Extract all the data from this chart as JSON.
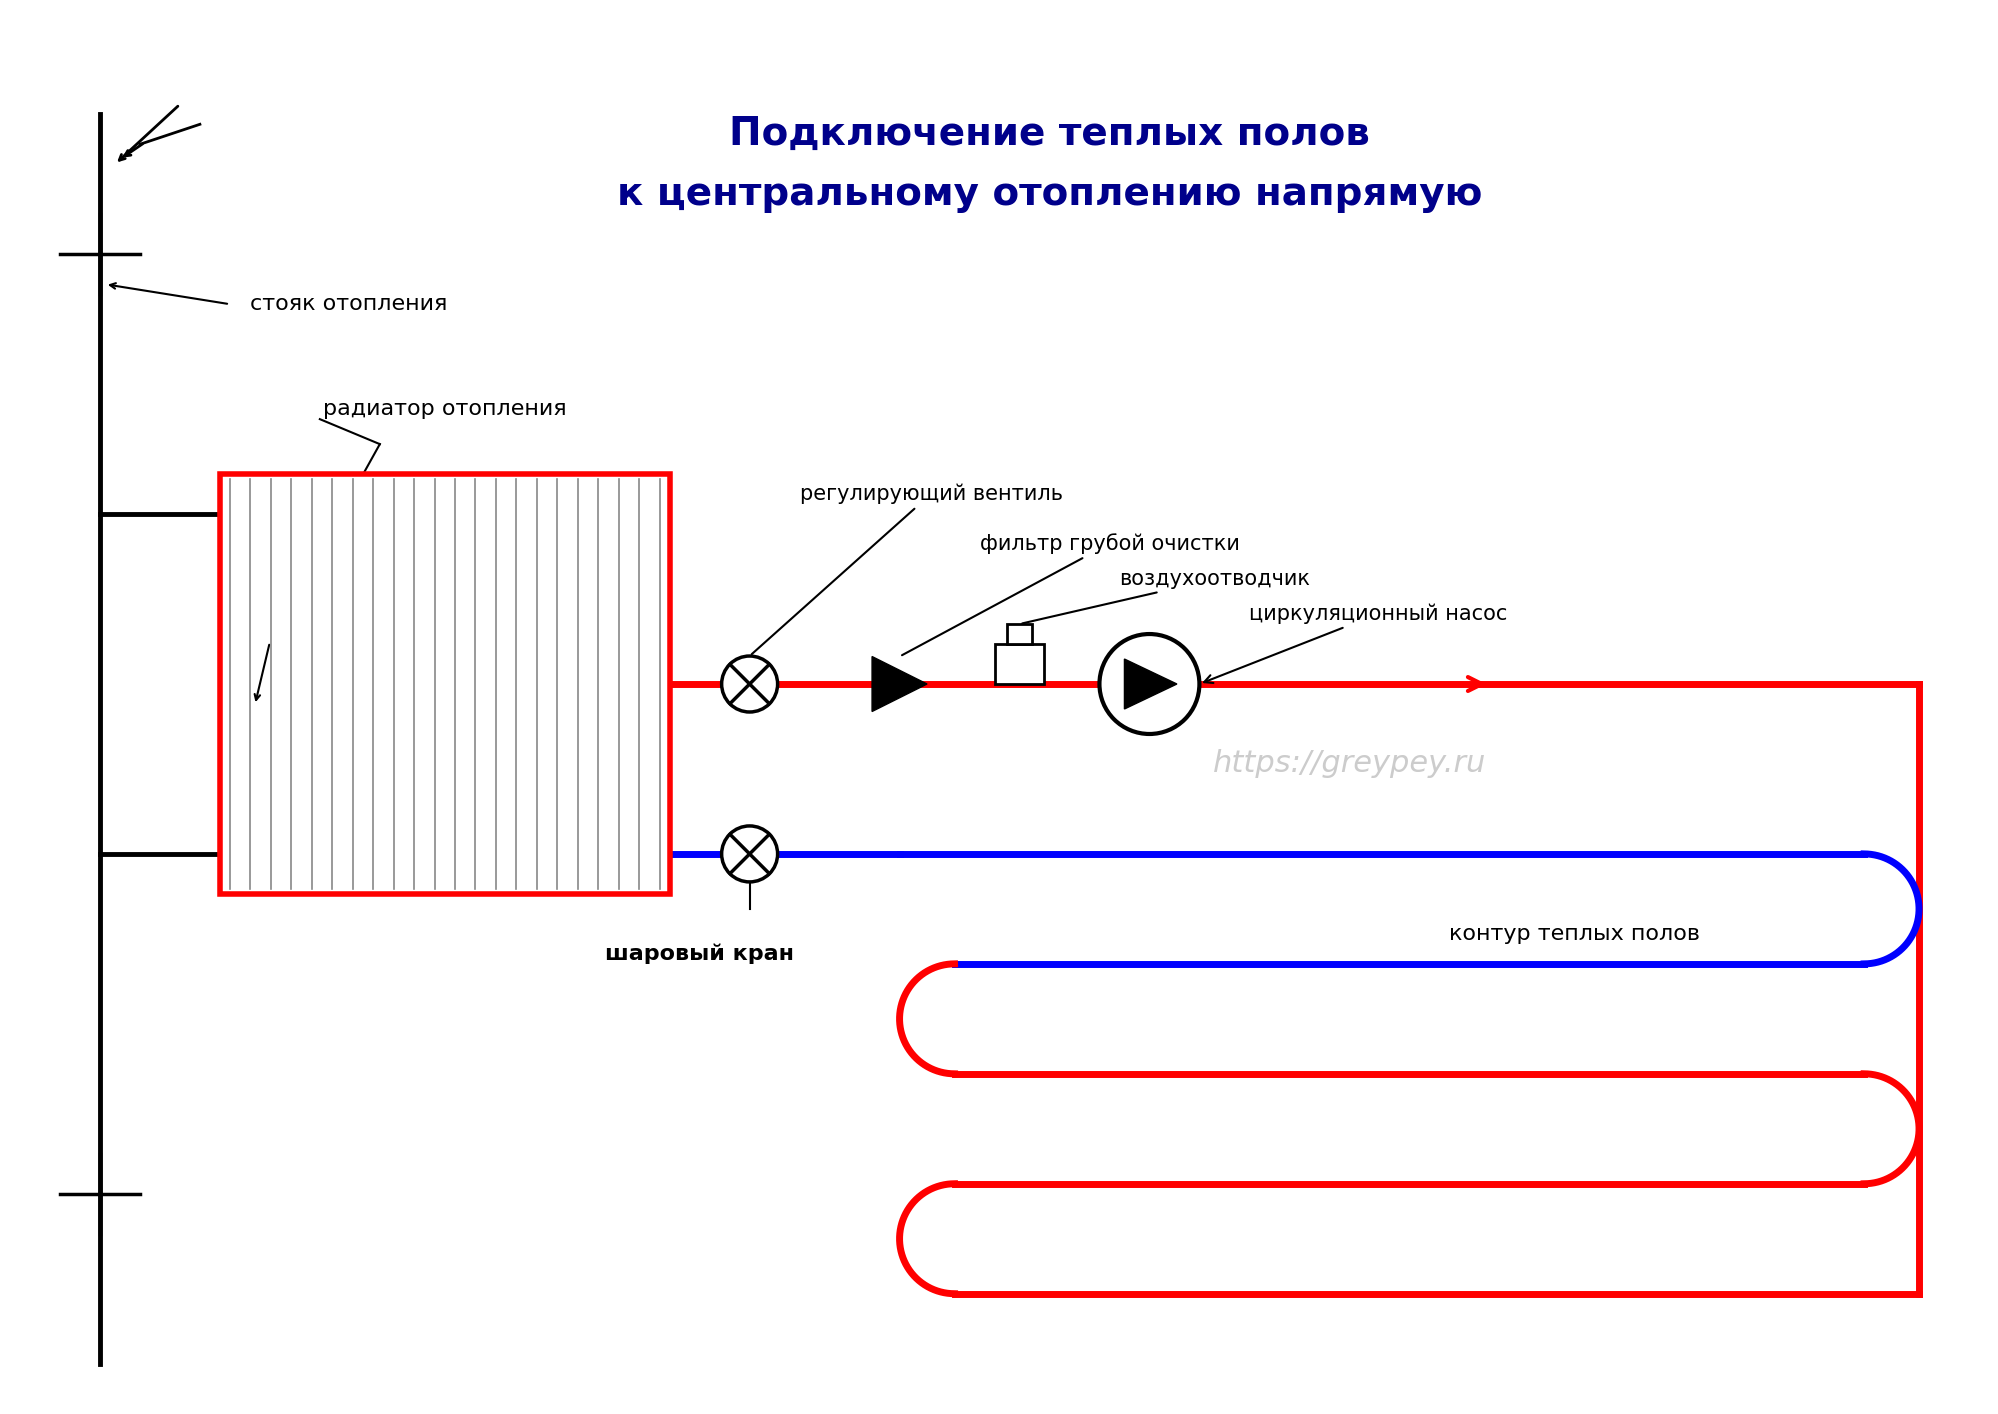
{
  "title_line1": "Подключение теплых полов",
  "title_line2": "к центральному отоплению напрямую",
  "title_color": "#00008B",
  "bg_color": "#FFFFFF",
  "label_stoyak": "стояк отопления",
  "label_radiator": "радиатор отопления",
  "label_ventil": "регулирующий вентиль",
  "label_filtr": "фильтр грубой очистки",
  "label_vozduh": "воздухоотводчик",
  "label_nasos": "циркуляционный насос",
  "label_kran": "шаровый кран",
  "label_kontur": "контур теплых полов",
  "label_url": "https://greypey.ru",
  "red_color": "#FF0000",
  "blue_color": "#0000FF",
  "black_color": "#000000",
  "gray_color": "#AAAAAA"
}
